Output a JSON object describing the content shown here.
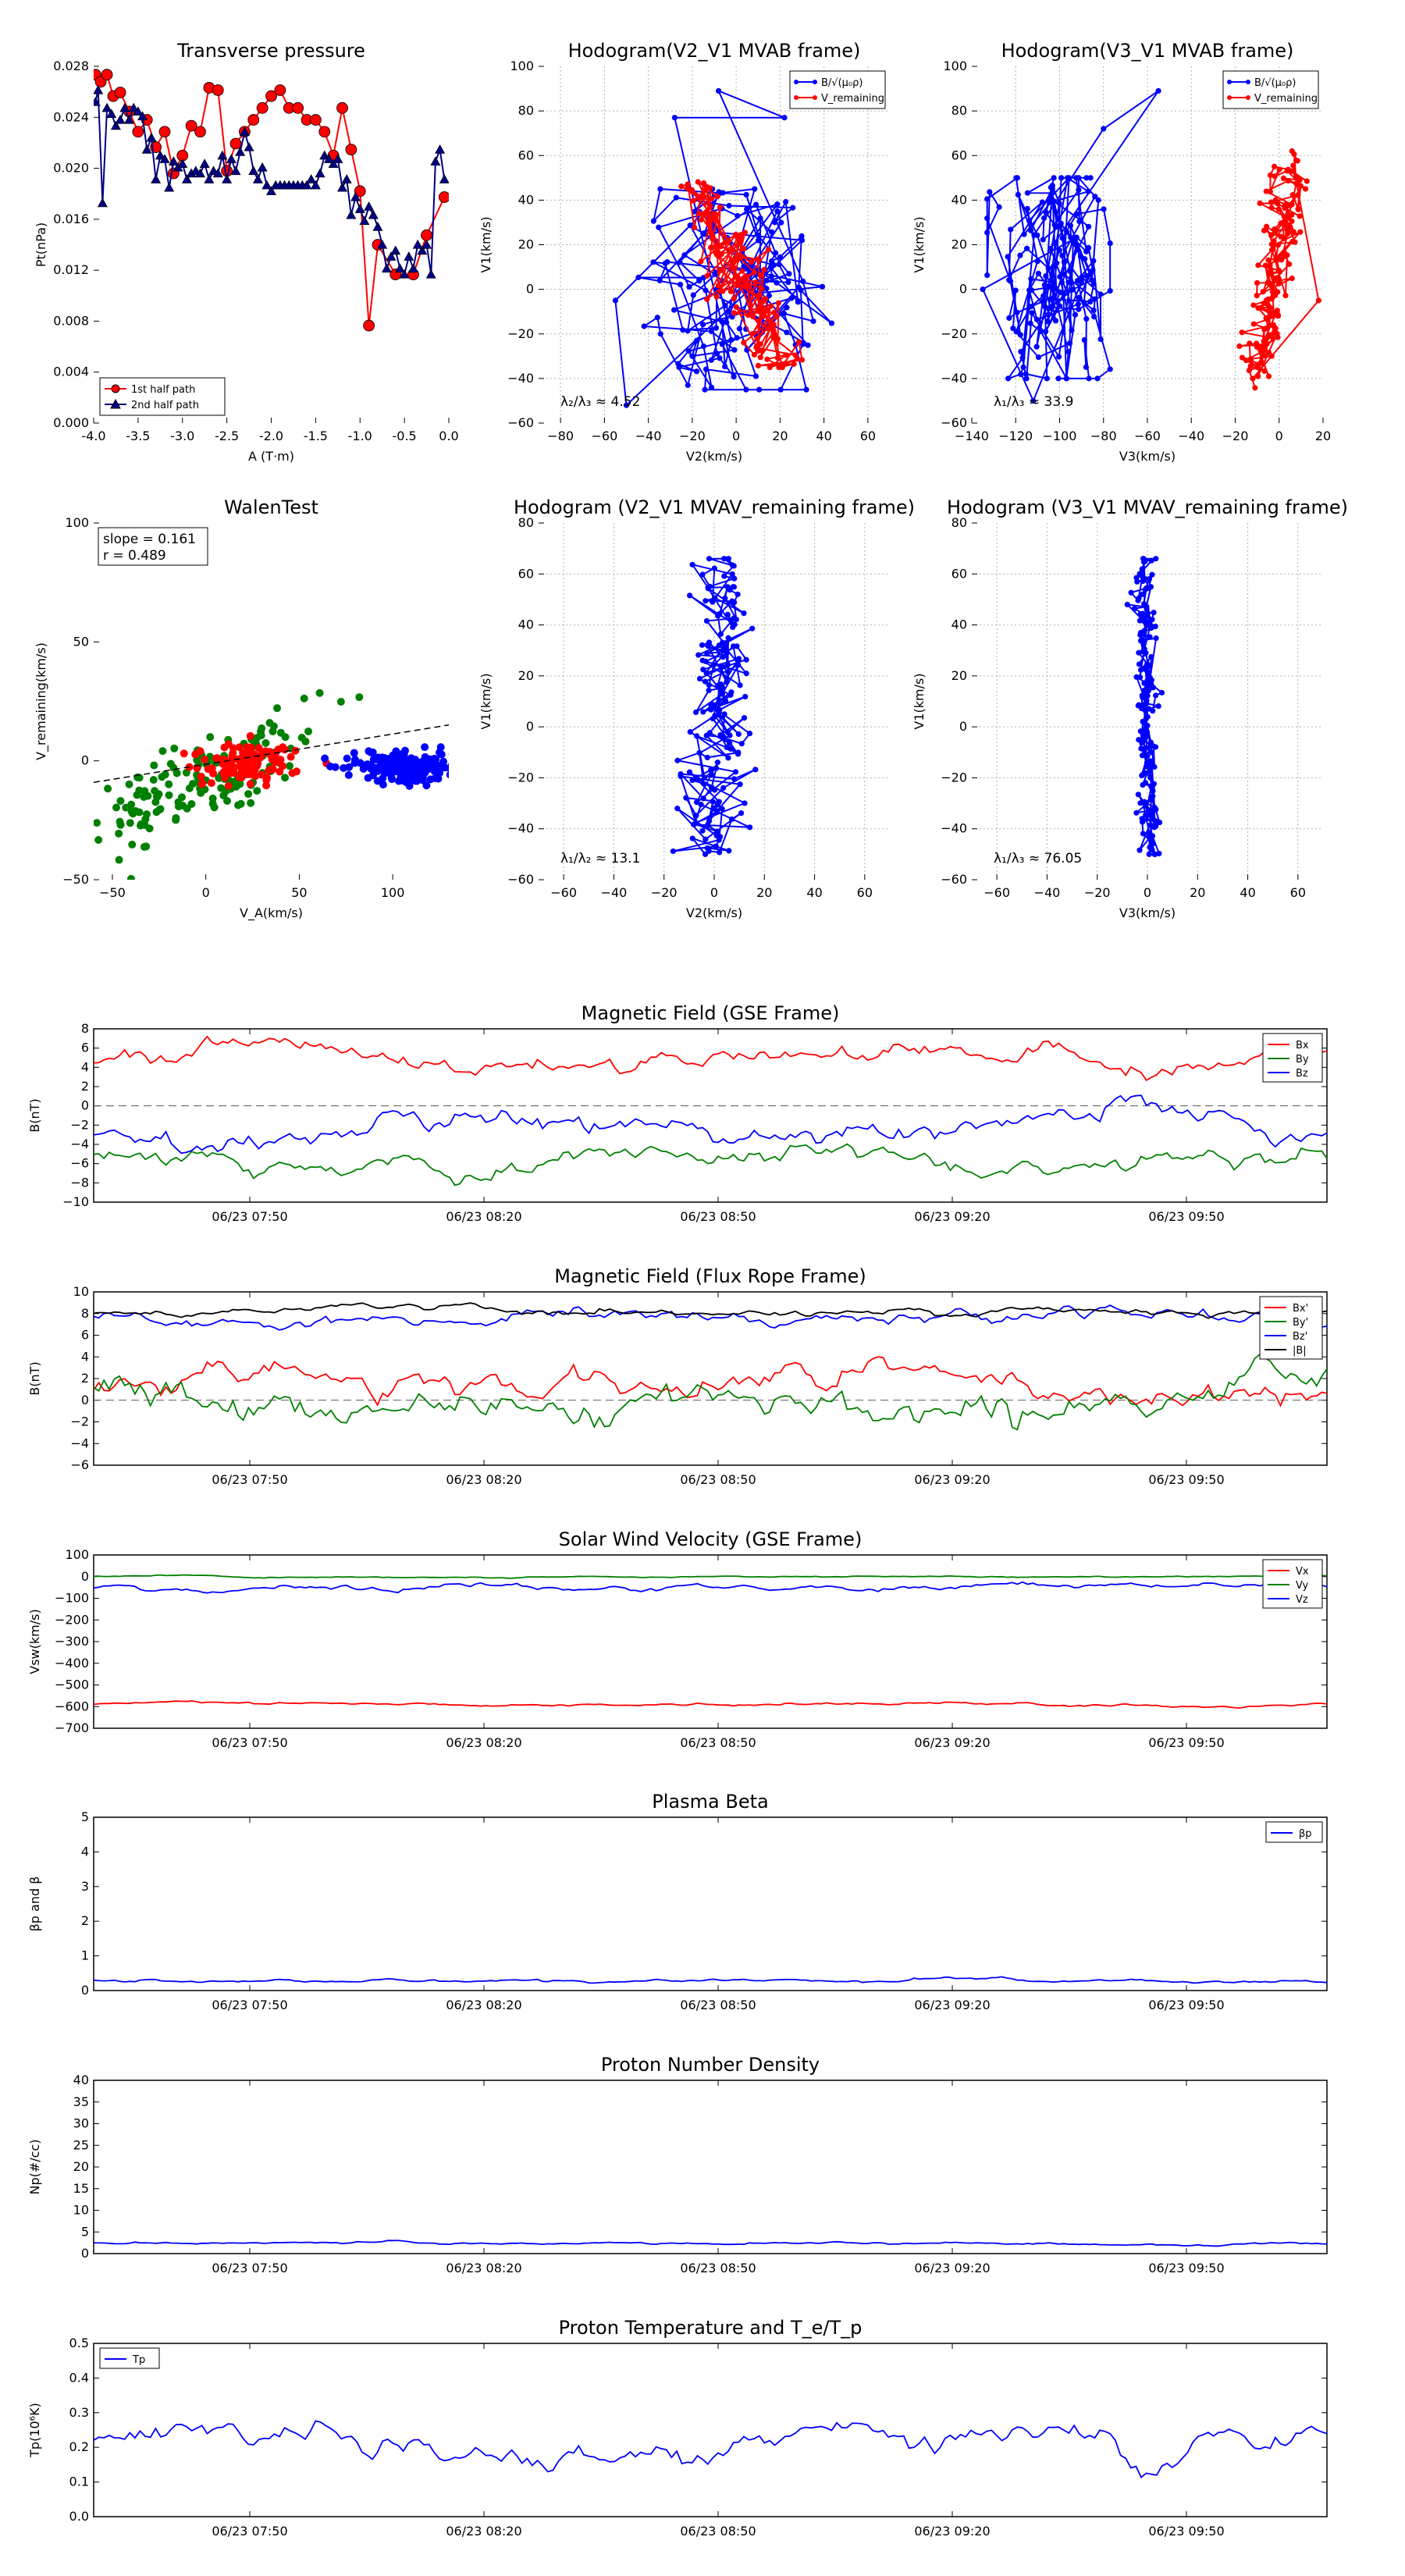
{
  "colors": {
    "red": "#ff0000",
    "green": "#008000",
    "blue": "#0000ff",
    "black": "#000000",
    "navy": "#000080",
    "grid": "#b0b0b0"
  },
  "chart_data": [
    {
      "id": "p1",
      "type": "line",
      "title": "Transverse pressure",
      "xlabel": "A (T·m)",
      "ylabel": "Pt(nPa)",
      "xlim": [
        -4.0,
        0.0
      ],
      "ylim": [
        0.0,
        0.03
      ],
      "xticks": [
        "-4.0",
        "-3.5",
        "-3.0",
        "-2.5",
        "-2.0",
        "-1.5",
        "-1.0",
        "-0.5",
        "0.0"
      ],
      "yticks": [
        "0.000",
        "0.004",
        "0.008",
        "0.012",
        "0.016",
        "0.020",
        "0.024",
        "0.028"
      ],
      "legend": [
        "1st half path",
        "2nd half path"
      ],
      "legend_loc": "lower-left",
      "series": [
        {
          "name": "1st half path",
          "color": "#ff0000",
          "marker": "circle",
          "x": [
            -3.98,
            -3.92,
            -3.85,
            -3.78,
            -3.7,
            -3.6,
            -3.5,
            -3.4,
            -3.3,
            -3.2,
            -3.1,
            -3.0,
            -2.9,
            -2.8,
            -2.7,
            -2.6,
            -2.5,
            -2.4,
            -2.3,
            -2.2,
            -2.1,
            -2.0,
            -1.9,
            -1.8,
            -1.7,
            -1.6,
            -1.5,
            -1.4,
            -1.3,
            -1.2,
            -1.1,
            -1.0,
            -0.9,
            -0.8,
            -0.6,
            -0.4,
            -0.25,
            -0.05
          ],
          "y": [
            0.0293,
            0.0287,
            0.0293,
            0.0275,
            0.0278,
            0.0262,
            0.0245,
            0.0255,
            0.0232,
            0.0245,
            0.021,
            0.0225,
            0.025,
            0.0245,
            0.0282,
            0.028,
            0.0212,
            0.0235,
            0.0245,
            0.0255,
            0.0265,
            0.0275,
            0.028,
            0.0265,
            0.0265,
            0.0255,
            0.0255,
            0.0245,
            0.0225,
            0.0265,
            0.023,
            0.0195,
            0.0082,
            0.015,
            0.0125,
            0.0125,
            0.0158,
            0.019
          ]
        },
        {
          "name": "2nd half path",
          "color": "#000080",
          "marker": "triangle",
          "x": [
            -3.98,
            -3.95,
            -3.9,
            -3.85,
            -3.8,
            -3.75,
            -3.7,
            -3.65,
            -3.6,
            -3.55,
            -3.5,
            -3.45,
            -3.4,
            -3.35,
            -3.3,
            -3.25,
            -3.2,
            -3.15,
            -3.1,
            -3.05,
            -3.0,
            -2.95,
            -2.9,
            -2.85,
            -2.8,
            -2.75,
            -2.7,
            -2.65,
            -2.6,
            -2.55,
            -2.5,
            -2.45,
            -2.4,
            -2.35,
            -2.3,
            -2.25,
            -2.2,
            -2.15,
            -2.1,
            -2.05,
            -2.0,
            -1.95,
            -1.9,
            -1.85,
            -1.8,
            -1.75,
            -1.7,
            -1.65,
            -1.6,
            -1.55,
            -1.5,
            -1.45,
            -1.4,
            -1.35,
            -1.3,
            -1.25,
            -1.2,
            -1.15,
            -1.1,
            -1.05,
            -1.0,
            -0.95,
            -0.9,
            -0.85,
            -0.8,
            -0.75,
            -0.7,
            -0.65,
            -0.6,
            -0.55,
            -0.5,
            -0.45,
            -0.4,
            -0.35,
            -0.3,
            -0.25,
            -0.2,
            -0.15,
            -0.1,
            -0.05
          ],
          "y": [
            0.027,
            0.028,
            0.0185,
            0.0265,
            0.026,
            0.025,
            0.0255,
            0.0265,
            0.0255,
            0.0265,
            0.0262,
            0.0258,
            0.023,
            0.024,
            0.0205,
            0.0225,
            0.0222,
            0.0198,
            0.022,
            0.0215,
            0.0218,
            0.0205,
            0.021,
            0.0212,
            0.021,
            0.0218,
            0.0205,
            0.0212,
            0.021,
            0.0225,
            0.0205,
            0.0222,
            0.0212,
            0.0228,
            0.0245,
            0.0232,
            0.0212,
            0.0205,
            0.0215,
            0.02,
            0.0195,
            0.02,
            0.02,
            0.02,
            0.02,
            0.02,
            0.02,
            0.02,
            0.02,
            0.0205,
            0.02,
            0.021,
            0.0225,
            0.0222,
            0.0218,
            0.0222,
            0.0198,
            0.0205,
            0.0175,
            0.019,
            0.018,
            0.017,
            0.0182,
            0.0175,
            0.0165,
            0.015,
            0.013,
            0.014,
            0.0145,
            0.013,
            0.0125,
            0.014,
            0.013,
            0.015,
            0.0145,
            0.015,
            0.0125,
            0.022,
            0.023,
            0.0205
          ]
        }
      ]
    },
    {
      "id": "p2",
      "type": "line",
      "title": "Hodogram(V2_V1 MVAB frame)",
      "xlabel": "V2(km/s)",
      "ylabel": "V1(km/s)",
      "xlim": [
        -90,
        70
      ],
      "ylim": [
        -60,
        100
      ],
      "xticks": [
        "−80",
        "−60",
        "−40",
        "−20",
        "0",
        "20",
        "40",
        "60"
      ],
      "yticks": [
        "−60",
        "−40",
        "−20",
        "0",
        "20",
        "40",
        "60",
        "80",
        "100"
      ],
      "legend": [
        "B/√(μ₀ρ)",
        "V_remaining"
      ],
      "legend_loc": "top-right",
      "annotation": "λ₂/λ₃ ≈ 4.52",
      "series": [
        {
          "name": "B/√(μ₀ρ)",
          "color": "#0000ff",
          "pattern": "hodoMVABb"
        },
        {
          "name": "V_remaining",
          "color": "#ff0000",
          "pattern": "hodoMVABr"
        }
      ]
    },
    {
      "id": "p3",
      "type": "line",
      "title": "Hodogram(V3_V1 MVAB frame)",
      "xlabel": "V3(km/s)",
      "ylabel": "V1(km/s)",
      "xlim": [
        -140,
        20
      ],
      "ylim": [
        -60,
        100
      ],
      "xticks": [
        "−140",
        "−120",
        "−100",
        "−80",
        "−60",
        "−40",
        "−20",
        "0",
        "20"
      ],
      "yticks": [
        "−60",
        "−40",
        "−20",
        "0",
        "20",
        "40",
        "60",
        "80",
        "100"
      ],
      "legend": [
        "B/√(μ₀ρ)",
        "V_remaining"
      ],
      "legend_loc": "top-right",
      "annotation": "λ₁/λ₃ ≈ 33.9",
      "series": [
        {
          "name": "B/√(μ₀ρ)",
          "color": "#0000ff",
          "pattern": "hodoV3b"
        },
        {
          "name": "V_remaining",
          "color": "#ff0000",
          "pattern": "hodoV3r"
        }
      ]
    },
    {
      "id": "p4",
      "type": "scatter",
      "title": "WalenTest",
      "xlabel": "V_A(km/s)",
      "ylabel": "V_remaining(km/s)",
      "xlim": [
        -60,
        130
      ],
      "ylim": [
        -60,
        130
      ],
      "xticks": [
        "−50",
        "0",
        "50",
        "100"
      ],
      "yticks": [
        "−50",
        "0",
        "50",
        "100"
      ],
      "stats": [
        "slope = 0.161",
        "r = 0.489"
      ],
      "fit_line": {
        "slope": 0.161,
        "intercept": 1.5
      },
      "series": [
        {
          "name": "",
          "color": "#008000",
          "cluster": {
            "cx": -5,
            "cy": -10,
            "sx": 30,
            "sy": 18,
            "n": 160,
            "corr": 0.8
          }
        },
        {
          "name": "",
          "color": "#ff0000",
          "cluster": {
            "cx": 20,
            "cy": 2,
            "sx": 15,
            "sy": 6,
            "n": 120,
            "corr": 0.2
          }
        },
        {
          "name": "",
          "color": "#0000ff",
          "cluster": {
            "cx": 108,
            "cy": 0,
            "sx": 15,
            "sy": 4,
            "n": 220,
            "corr": 0.0
          }
        }
      ]
    },
    {
      "id": "p5",
      "type": "line",
      "title": "Hodogram (V2_V1 MVAV_remaining frame)",
      "xlabel": "V2(km/s)",
      "ylabel": "V1(km/s)",
      "xlim": [
        -70,
        70
      ],
      "ylim": [
        -60,
        80
      ],
      "xticks": [
        "−60",
        "−40",
        "−20",
        "0",
        "20",
        "40",
        "60"
      ],
      "yticks": [
        "−60",
        "−40",
        "−20",
        "0",
        "20",
        "40",
        "60",
        "80"
      ],
      "annotation": "λ₁/λ₂ ≈ 13.1",
      "series": [
        {
          "name": "",
          "color": "#0000ff",
          "pattern": "hodoMVAV2"
        }
      ]
    },
    {
      "id": "p6",
      "type": "line",
      "title": "Hodogram (V3_V1 MVAV_remaining frame)",
      "xlabel": "V3(km/s)",
      "ylabel": "V1(km/s)",
      "xlim": [
        -70,
        70
      ],
      "ylim": [
        -60,
        80
      ],
      "xticks": [
        "−60",
        "−40",
        "−20",
        "0",
        "20",
        "40",
        "60"
      ],
      "yticks": [
        "−60",
        "−40",
        "−20",
        "0",
        "20",
        "40",
        "60",
        "80"
      ],
      "annotation": "λ₁/λ₃ ≈ 76.05",
      "series": [
        {
          "name": "",
          "color": "#0000ff",
          "pattern": "hodoMVAV3"
        }
      ]
    },
    {
      "id": "ts1",
      "type": "line",
      "title": "Magnetic Field (GSE Frame)",
      "ylabel": "B(nT)",
      "ylim": [
        -10,
        8
      ],
      "yticks": [
        "−10",
        "−8",
        "−6",
        "−4",
        "−2",
        "0",
        "2",
        "4",
        "6",
        "8"
      ],
      "xticks": [
        "06/23 07:50",
        "06/23 08:20",
        "06/23 08:50",
        "06/23 09:20",
        "06/23 09:50"
      ],
      "time_range": [
        "06/23 07:30",
        "06/23 10:08"
      ],
      "zero_dashed": true,
      "legend": [
        "Bx",
        "By",
        "Bz"
      ],
      "legend_loc": "top-right",
      "series": [
        {
          "name": "Bx",
          "color": "#ff0000",
          "base": 5.0,
          "amp": 1.3
        },
        {
          "name": "By",
          "color": "#008000",
          "base": -5.5,
          "amp": 1.3
        },
        {
          "name": "Bz",
          "color": "#0000ff",
          "base": -2.5,
          "amp": 1.6
        }
      ]
    },
    {
      "id": "ts2",
      "type": "line",
      "title": "Magnetic Field (Flux Rope Frame)",
      "ylabel": "B(nT)",
      "ylim": [
        -6,
        10
      ],
      "yticks": [
        "−6",
        "−4",
        "−2",
        "0",
        "2",
        "4",
        "6",
        "8",
        "10"
      ],
      "xticks": [
        "06/23 07:50",
        "06/23 08:20",
        "06/23 08:50",
        "06/23 09:20",
        "06/23 09:50"
      ],
      "time_range": [
        "06/23 07:30",
        "06/23 10:08"
      ],
      "zero_dashed": true,
      "legend": [
        "Bx'",
        "By'",
        "Bz'",
        "|B|"
      ],
      "legend_loc": "top-right",
      "series": [
        {
          "name": "Bx'",
          "color": "#ff0000",
          "base": 1.5,
          "amp": 1.6
        },
        {
          "name": "By'",
          "color": "#008000",
          "base": 0.0,
          "amp": 2.2
        },
        {
          "name": "Bz'",
          "color": "#0000ff",
          "base": 7.5,
          "amp": 0.8
        },
        {
          "name": "|B|",
          "color": "#000000",
          "base": 8.2,
          "amp": 0.4
        }
      ]
    },
    {
      "id": "ts3",
      "type": "line",
      "title": "Solar Wind Velocity (GSE Frame)",
      "ylabel": "Vsw(km/s)",
      "ylim": [
        -700,
        100
      ],
      "yticks": [
        "−700",
        "−600",
        "−500",
        "−400",
        "−300",
        "−200",
        "−100",
        "0",
        "100"
      ],
      "xticks": [
        "06/23 07:50",
        "06/23 08:20",
        "06/23 08:50",
        "06/23 09:20",
        "06/23 09:50"
      ],
      "time_range": [
        "06/23 07:30",
        "06/23 10:08"
      ],
      "legend": [
        "Vx",
        "Vy",
        "Vz"
      ],
      "legend_loc": "top-right",
      "series": [
        {
          "name": "Vx",
          "color": "#ff0000",
          "base": -590,
          "amp": 8
        },
        {
          "name": "Vy",
          "color": "#008000",
          "base": 0,
          "amp": 4
        },
        {
          "name": "Vz",
          "color": "#0000ff",
          "base": -50,
          "amp": 18
        }
      ]
    },
    {
      "id": "ts4",
      "type": "line",
      "title": "Plasma Beta",
      "ylabel": "βp and β",
      "ylim": [
        0,
        5
      ],
      "yticks": [
        "0",
        "1",
        "2",
        "3",
        "4",
        "5"
      ],
      "xticks": [
        "06/23 07:50",
        "06/23 08:20",
        "06/23 08:50",
        "06/23 09:20",
        "06/23 09:50"
      ],
      "time_range": [
        "06/23 07:30",
        "06/23 10:08"
      ],
      "legend": [
        "βp"
      ],
      "legend_loc": "top-right",
      "series": [
        {
          "name": "βp",
          "color": "#0000ff",
          "base": 0.28,
          "amp": 0.06
        }
      ]
    },
    {
      "id": "ts5",
      "type": "line",
      "title": "Proton Number Density",
      "ylabel": "Np(#/cc)",
      "ylim": [
        0,
        40
      ],
      "yticks": [
        "0",
        "5",
        "10",
        "15",
        "20",
        "25",
        "30",
        "35",
        "40"
      ],
      "xticks": [
        "06/23 07:50",
        "06/23 08:20",
        "06/23 08:50",
        "06/23 09:20",
        "06/23 09:50"
      ],
      "time_range": [
        "06/23 07:30",
        "06/23 10:08"
      ],
      "series": [
        {
          "name": "",
          "color": "#0000ff",
          "base": 2.4,
          "amp": 0.35
        }
      ]
    },
    {
      "id": "ts6",
      "type": "line",
      "title": "Proton Temperature and T_e/T_p",
      "ylabel": "Tp(10⁶K)",
      "ylim": [
        0,
        0.5
      ],
      "yticks": [
        "0.0",
        "0.1",
        "0.2",
        "0.3",
        "0.4",
        "0.5"
      ],
      "xticks": [
        "06/23 07:50",
        "06/23 08:20",
        "06/23 08:50",
        "06/23 09:20",
        "06/23 09:50"
      ],
      "time_range": [
        "06/23 07:30",
        "06/23 10:08"
      ],
      "legend": [
        "Tp"
      ],
      "legend_loc": "top-left",
      "series": [
        {
          "name": "Tp",
          "color": "#0000ff",
          "base": 0.22,
          "amp": 0.045
        }
      ]
    }
  ]
}
